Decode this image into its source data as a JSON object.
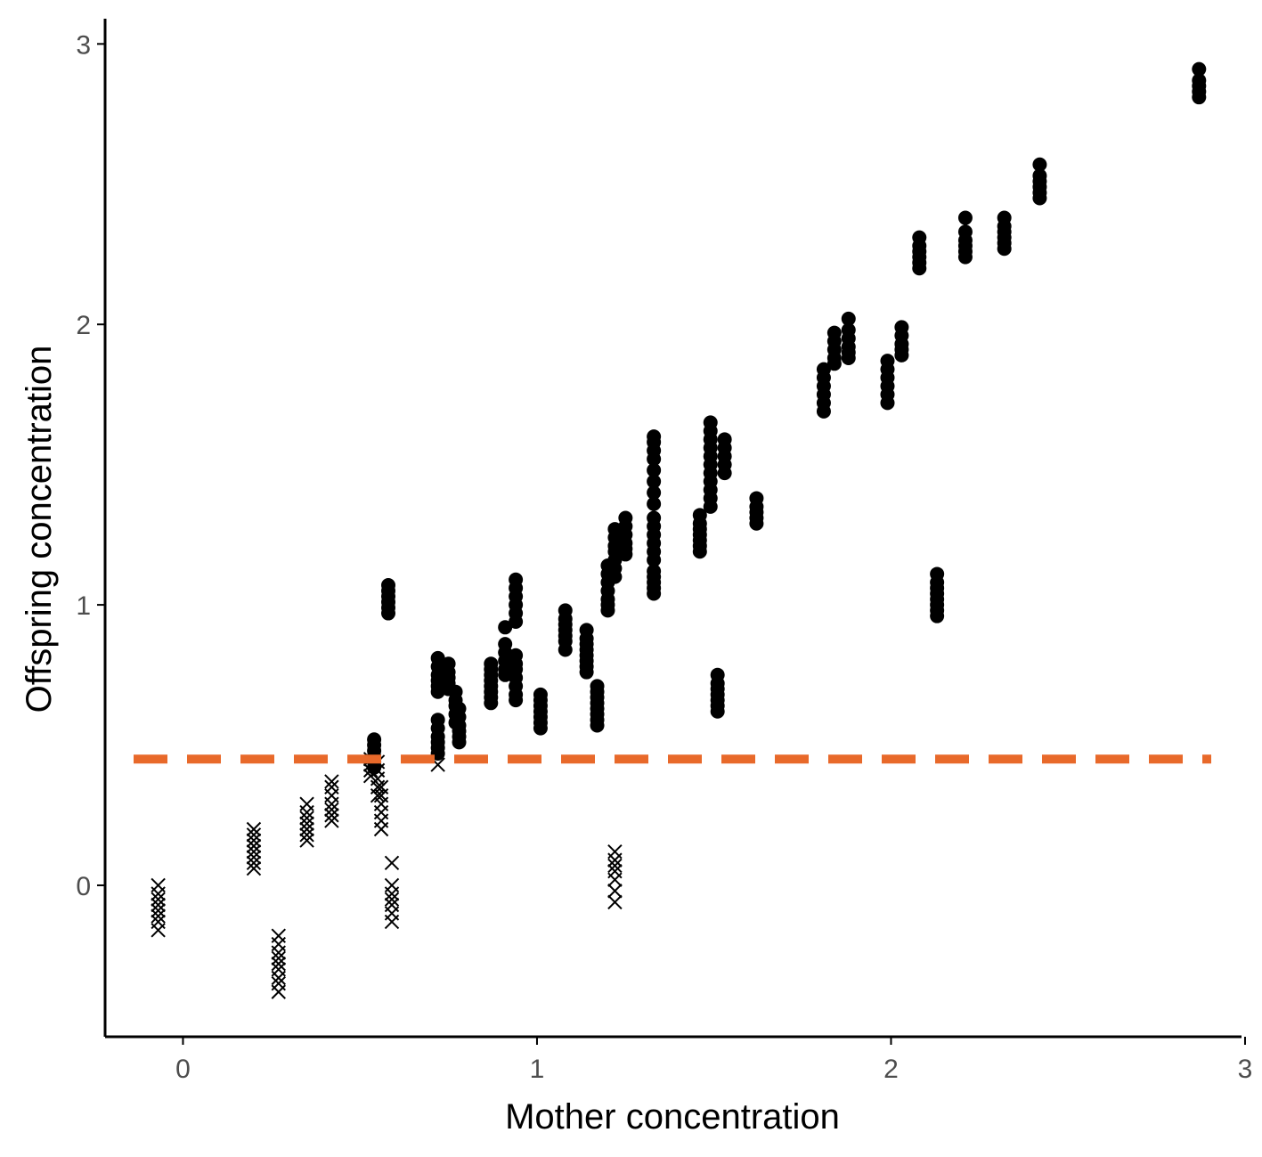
{
  "chart_data": {
    "type": "scatter",
    "title": "",
    "xlabel": "Mother concentration",
    "ylabel": "Offspring concentration",
    "xlim": [
      -0.22,
      2.99
    ],
    "ylim": [
      -0.54,
      3.09
    ],
    "x_ticks": [
      0,
      1,
      2,
      3
    ],
    "y_ticks": [
      0,
      1,
      2,
      3
    ],
    "x_tick_labels": [
      "0",
      "1",
      "2",
      "3"
    ],
    "y_tick_labels": [
      "0",
      "1",
      "2",
      "3"
    ],
    "grid": false,
    "threshold": {
      "y": 0.45,
      "style": "dashed",
      "color": "#E8692A"
    },
    "marker_colors": {
      "dot": "#000000",
      "cross": "#000000"
    },
    "series": [
      {
        "marker": "dot",
        "groups": [
          {
            "x": 0.54,
            "y": [
              0.42,
              0.44,
              0.46,
              0.48,
              0.5,
              0.52
            ]
          },
          {
            "x": 0.58,
            "y": [
              0.97,
              0.99,
              1.01,
              1.03,
              1.05,
              1.07
            ]
          },
          {
            "x": 0.72,
            "y": [
              0.47,
              0.49,
              0.51,
              0.53,
              0.56,
              0.59,
              0.69,
              0.71,
              0.73,
              0.75,
              0.78,
              0.81
            ]
          },
          {
            "x": 0.75,
            "y": [
              0.7,
              0.72,
              0.74,
              0.76,
              0.79
            ]
          },
          {
            "x": 0.77,
            "y": [
              0.58,
              0.61,
              0.64,
              0.66,
              0.69
            ]
          },
          {
            "x": 0.78,
            "y": [
              0.51,
              0.53,
              0.55,
              0.57,
              0.6,
              0.63
            ]
          },
          {
            "x": 0.87,
            "y": [
              0.65,
              0.67,
              0.69,
              0.71,
              0.73,
              0.75,
              0.77,
              0.79
            ]
          },
          {
            "x": 0.91,
            "y": [
              0.75,
              0.77,
              0.8,
              0.83,
              0.86,
              0.92
            ]
          },
          {
            "x": 0.94,
            "y": [
              0.66,
              0.68,
              0.71,
              0.74,
              0.77,
              0.79,
              0.82,
              0.94,
              0.97,
              1.0,
              1.03,
              1.06,
              1.09
            ]
          },
          {
            "x": 1.01,
            "y": [
              0.56,
              0.58,
              0.6,
              0.62,
              0.64,
              0.66,
              0.68
            ]
          },
          {
            "x": 1.08,
            "y": [
              0.84,
              0.87,
              0.89,
              0.91,
              0.93,
              0.95,
              0.98
            ]
          },
          {
            "x": 1.14,
            "y": [
              0.76,
              0.78,
              0.8,
              0.82,
              0.84,
              0.86,
              0.88,
              0.91
            ]
          },
          {
            "x": 1.17,
            "y": [
              0.57,
              0.59,
              0.61,
              0.63,
              0.65,
              0.67,
              0.69,
              0.71
            ]
          },
          {
            "x": 1.2,
            "y": [
              0.98,
              1.0,
              1.02,
              1.05,
              1.08,
              1.11,
              1.14
            ]
          },
          {
            "x": 1.22,
            "y": [
              1.1,
              1.13,
              1.16,
              1.19,
              1.21,
              1.24,
              1.27
            ]
          },
          {
            "x": 1.25,
            "y": [
              1.18,
              1.2,
              1.22,
              1.25,
              1.28,
              1.31
            ]
          },
          {
            "x": 1.33,
            "y": [
              1.04,
              1.06,
              1.08,
              1.1,
              1.12,
              1.16,
              1.19,
              1.22,
              1.25,
              1.28,
              1.31,
              1.36,
              1.4,
              1.44,
              1.48,
              1.52,
              1.55,
              1.58,
              1.6
            ]
          },
          {
            "x": 1.46,
            "y": [
              1.19,
              1.21,
              1.23,
              1.25,
              1.27,
              1.29,
              1.32
            ]
          },
          {
            "x": 1.49,
            "y": [
              1.35,
              1.38,
              1.41,
              1.44,
              1.47,
              1.5,
              1.53,
              1.56,
              1.59,
              1.62,
              1.65
            ]
          },
          {
            "x": 1.51,
            "y": [
              0.62,
              0.64,
              0.66,
              0.68,
              0.7,
              0.72,
              0.75
            ]
          },
          {
            "x": 1.53,
            "y": [
              1.47,
              1.5,
              1.53,
              1.56,
              1.59
            ]
          },
          {
            "x": 1.62,
            "y": [
              1.29,
              1.31,
              1.33,
              1.35,
              1.38
            ]
          },
          {
            "x": 1.81,
            "y": [
              1.69,
              1.72,
              1.75,
              1.78,
              1.81,
              1.84
            ]
          },
          {
            "x": 1.84,
            "y": [
              1.86,
              1.88,
              1.91,
              1.94,
              1.97
            ]
          },
          {
            "x": 1.88,
            "y": [
              1.88,
              1.9,
              1.92,
              1.95,
              1.98,
              2.02
            ]
          },
          {
            "x": 1.99,
            "y": [
              1.72,
              1.75,
              1.78,
              1.81,
              1.84,
              1.87
            ]
          },
          {
            "x": 2.03,
            "y": [
              1.89,
              1.91,
              1.93,
              1.96,
              1.99
            ]
          },
          {
            "x": 2.08,
            "y": [
              2.2,
              2.22,
              2.24,
              2.26,
              2.28,
              2.31
            ]
          },
          {
            "x": 2.13,
            "y": [
              0.96,
              0.98,
              1.0,
              1.02,
              1.04,
              1.06,
              1.08,
              1.11
            ]
          },
          {
            "x": 2.21,
            "y": [
              2.24,
              2.26,
              2.28,
              2.3,
              2.33,
              2.38
            ]
          },
          {
            "x": 2.32,
            "y": [
              2.27,
              2.29,
              2.31,
              2.33,
              2.35,
              2.38
            ]
          },
          {
            "x": 2.42,
            "y": [
              2.45,
              2.47,
              2.49,
              2.51,
              2.53,
              2.57
            ]
          },
          {
            "x": 2.87,
            "y": [
              2.81,
              2.83,
              2.85,
              2.87,
              2.91
            ]
          }
        ]
      },
      {
        "marker": "cross",
        "groups": [
          {
            "x": -0.07,
            "y": [
              -0.16,
              -0.13,
              -0.11,
              -0.09,
              -0.07,
              -0.05,
              -0.03,
              0.0
            ]
          },
          {
            "x": 0.2,
            "y": [
              0.06,
              0.08,
              0.1,
              0.12,
              0.14,
              0.16,
              0.18,
              0.2
            ]
          },
          {
            "x": 0.27,
            "y": [
              -0.38,
              -0.35,
              -0.33,
              -0.3,
              -0.28,
              -0.26,
              -0.24,
              -0.21,
              -0.18
            ]
          },
          {
            "x": 0.35,
            "y": [
              0.16,
              0.18,
              0.2,
              0.22,
              0.24,
              0.26,
              0.29
            ]
          },
          {
            "x": 0.42,
            "y": [
              0.23,
              0.25,
              0.27,
              0.29,
              0.32,
              0.35,
              0.37
            ]
          },
          {
            "x": 0.53,
            "y": [
              0.39,
              0.41,
              0.43,
              0.45
            ]
          },
          {
            "x": 0.55,
            "y": [
              0.32,
              0.35,
              0.38,
              0.41,
              0.44
            ]
          },
          {
            "x": 0.56,
            "y": [
              0.2,
              0.23,
              0.26,
              0.29,
              0.32,
              0.35
            ]
          },
          {
            "x": 0.59,
            "y": [
              -0.13,
              -0.1,
              -0.07,
              -0.05,
              -0.03,
              0.0,
              0.08
            ]
          },
          {
            "x": 0.72,
            "y": [
              0.43
            ]
          },
          {
            "x": 1.22,
            "y": [
              -0.06,
              -0.02,
              0.02,
              0.05,
              0.07,
              0.09,
              0.12
            ]
          }
        ]
      }
    ]
  }
}
